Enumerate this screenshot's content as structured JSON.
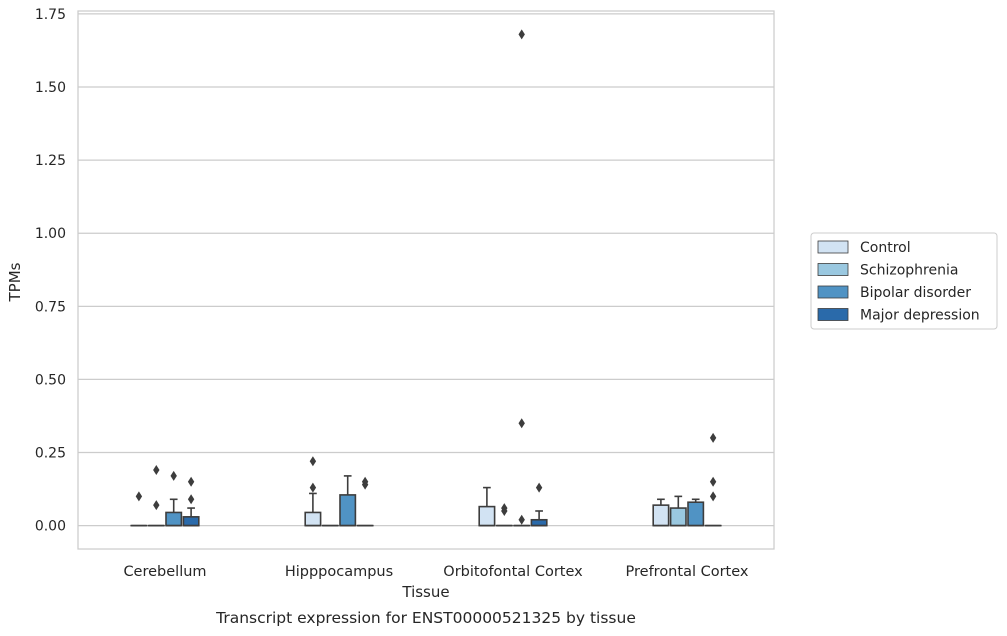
{
  "chart_data": {
    "type": "box",
    "title": "",
    "caption": "Transcript expression for ENST00000521325 by tissue",
    "xlabel": "Tissue",
    "ylabel": "TPMs",
    "ylim": [
      -0.08,
      1.76
    ],
    "yticks": [
      "0.00",
      "0.25",
      "0.50",
      "0.75",
      "1.00",
      "1.25",
      "1.50",
      "1.75"
    ],
    "ytick_values": [
      0,
      0.25,
      0.5,
      0.75,
      1.0,
      1.25,
      1.5,
      1.75
    ],
    "grid": true,
    "legend_position": "right",
    "categories": [
      "Cerebellum",
      "Hipppocampus",
      "Orbitofontal Cortex",
      "Prefrontal Cortex"
    ],
    "series": [
      {
        "name": "Control",
        "color": "#d2e3f3",
        "boxes": [
          {
            "q1": 0,
            "median": 0,
            "q3": 0,
            "whisker_low": 0,
            "whisker_high": 0,
            "outliers": [
              0.1
            ]
          },
          {
            "q1": 0,
            "median": 0,
            "q3": 0.045,
            "whisker_low": 0,
            "whisker_high": 0.11,
            "outliers": [
              0.13,
              0.22
            ]
          },
          {
            "q1": 0,
            "median": 0,
            "q3": 0.065,
            "whisker_low": 0,
            "whisker_high": 0.13,
            "outliers": []
          },
          {
            "q1": 0,
            "median": 0,
            "q3": 0.07,
            "whisker_low": 0,
            "whisker_high": 0.09,
            "outliers": []
          }
        ]
      },
      {
        "name": "Schizophrenia",
        "color": "#9ac8e0",
        "boxes": [
          {
            "q1": 0,
            "median": 0,
            "q3": 0,
            "whisker_low": 0,
            "whisker_high": 0,
            "outliers": [
              0.07,
              0.19
            ]
          },
          {
            "q1": 0,
            "median": 0,
            "q3": 0,
            "whisker_low": 0,
            "whisker_high": 0,
            "outliers": []
          },
          {
            "q1": 0,
            "median": 0,
            "q3": 0,
            "whisker_low": 0,
            "whisker_high": 0,
            "outliers": [
              0.05,
              0.06
            ]
          },
          {
            "q1": 0,
            "median": 0,
            "q3": 0.06,
            "whisker_low": 0,
            "whisker_high": 0.1,
            "outliers": []
          }
        ]
      },
      {
        "name": "Bipolar disorder",
        "color": "#5093c4",
        "boxes": [
          {
            "q1": 0,
            "median": 0,
            "q3": 0.045,
            "whisker_low": 0,
            "whisker_high": 0.09,
            "outliers": [
              0.17
            ]
          },
          {
            "q1": 0,
            "median": 0,
            "q3": 0.105,
            "whisker_low": 0,
            "whisker_high": 0.17,
            "outliers": []
          },
          {
            "q1": 0,
            "median": 0,
            "q3": 0,
            "whisker_low": 0,
            "whisker_high": 0,
            "outliers": [
              0.02,
              0.35,
              1.68
            ]
          },
          {
            "q1": 0,
            "median": 0,
            "q3": 0.08,
            "whisker_low": 0,
            "whisker_high": 0.09,
            "outliers": []
          }
        ]
      },
      {
        "name": "Major depression",
        "color": "#2a6aaa",
        "boxes": [
          {
            "q1": 0,
            "median": 0,
            "q3": 0.03,
            "whisker_low": 0,
            "whisker_high": 0.06,
            "outliers": [
              0.09,
              0.15
            ]
          },
          {
            "q1": 0,
            "median": 0,
            "q3": 0,
            "whisker_low": 0,
            "whisker_high": 0,
            "outliers": [
              0.14,
              0.15
            ]
          },
          {
            "q1": 0,
            "median": 0,
            "q3": 0.02,
            "whisker_low": 0,
            "whisker_high": 0.05,
            "outliers": [
              0.13
            ]
          },
          {
            "q1": 0,
            "median": 0,
            "q3": 0,
            "whisker_low": 0,
            "whisker_high": 0,
            "outliers": [
              0.1,
              0.15,
              0.3
            ]
          }
        ]
      }
    ]
  }
}
